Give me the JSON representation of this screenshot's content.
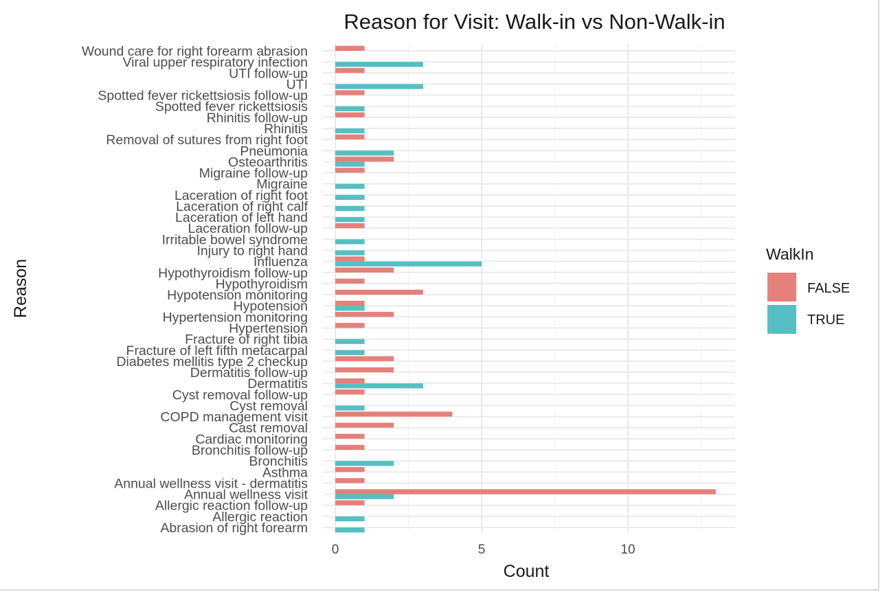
{
  "chart_data": {
    "type": "bar",
    "orientation": "horizontal",
    "title": "Reason for Visit: Walk-in vs Non-Walk-in",
    "xlabel": "Count",
    "ylabel": "Reason",
    "xlim": [
      0,
      13.5
    ],
    "xticks": [
      0,
      5,
      10
    ],
    "grid": true,
    "legend": {
      "title": "WalkIn",
      "position": "right",
      "entries": [
        {
          "name": "FALSE",
          "color": "#e5807a"
        },
        {
          "name": "TRUE",
          "color": "#55bfc3"
        }
      ]
    },
    "categories": [
      "Wound care for right forearm abrasion",
      "Viral upper respiratory infection",
      "UTI follow-up",
      "UTI",
      "Spotted fever rickettsiosis follow-up",
      "Spotted fever rickettsiosis",
      "Rhinitis follow-up",
      "Rhinitis",
      "Removal of sutures from right foot",
      "Pneumonia",
      "Osteoarthritis",
      "Migraine follow-up",
      "Migraine",
      "Laceration of right foot",
      "Laceration of right calf",
      "Laceration of left hand",
      "Laceration follow-up",
      "Irritable bowel syndrome",
      "Injury to right hand",
      "Influenza",
      "Hypothyroidism follow-up",
      "Hypothyroidism",
      "Hypotension monitoring",
      "Hypotension",
      "Hypertension monitoring",
      "Hypertension",
      "Fracture of right tibia",
      "Fracture of left fifth metacarpal",
      "Diabetes mellitis type 2 checkup",
      "Dermatitis follow-up",
      "Dermatitis",
      "Cyst removal follow-up",
      "Cyst removal",
      "COPD management visit",
      "Cast removal",
      "Cardiac monitoring",
      "Bronchitis follow-up",
      "Bronchitis",
      "Asthma",
      "Annual wellness visit - dermatitis",
      "Annual wellness visit",
      "Allergic reaction follow-up",
      "Allergic reaction",
      "Abrasion of right forearm"
    ],
    "series": [
      {
        "name": "FALSE",
        "color": "#e5807a",
        "values": [
          1,
          0,
          1,
          0,
          1,
          0,
          1,
          0,
          1,
          0,
          2,
          1,
          0,
          0,
          0,
          0,
          1,
          0,
          0,
          1,
          2,
          1,
          3,
          1,
          2,
          1,
          0,
          0,
          2,
          2,
          1,
          1,
          0,
          4,
          2,
          1,
          1,
          0,
          1,
          1,
          13,
          1,
          0,
          0
        ]
      },
      {
        "name": "TRUE",
        "color": "#55bfc3",
        "values": [
          0,
          3,
          0,
          3,
          0,
          1,
          0,
          1,
          0,
          2,
          1,
          0,
          1,
          1,
          1,
          1,
          0,
          1,
          1,
          5,
          0,
          0,
          0,
          1,
          0,
          0,
          1,
          1,
          0,
          0,
          3,
          0,
          1,
          0,
          0,
          0,
          0,
          2,
          0,
          0,
          2,
          0,
          1,
          1
        ]
      }
    ]
  }
}
